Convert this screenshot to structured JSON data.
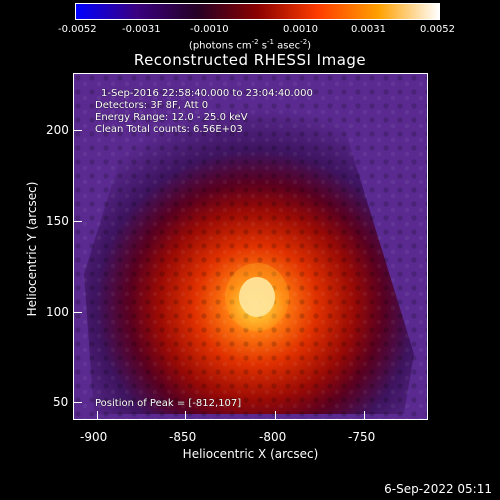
{
  "colorbar": {
    "labels": [
      "-0.0052",
      "-0.0031",
      "-0.0010",
      "0.0010",
      "0.0031",
      "0.0052"
    ],
    "units_main": "(photons cm",
    "units_exp1": "-2",
    "units_mid": " s",
    "units_exp2": "-1",
    "units_mid2": " asec",
    "units_exp3": "-2",
    "units_end": ")",
    "colors": [
      "#0000ff",
      "#3a0080",
      "#250025",
      "#8a0000",
      "#ff3c00",
      "#ffa000",
      "#ffffff"
    ]
  },
  "plot": {
    "title": "Reconstructed RHESSI Image",
    "annotations": {
      "time": "1-Sep-2016 22:58:40.000 to 23:04:40.000",
      "detectors": "Detectors: 3F 8F, Att 0",
      "energy": "Energy Range: 12.0 - 25.0 keV",
      "clean": "Clean    Total counts: 6.56E+03",
      "peak": "Position of Peak = [-812,107]"
    },
    "x_axis": {
      "label": "Heliocentric X (arcsec)",
      "ticks": [
        "-900",
        "-850",
        "-800",
        "-750"
      ]
    },
    "y_axis": {
      "label": "Heliocentric Y (arcsec)",
      "ticks": [
        "200",
        "150",
        "100",
        "50"
      ]
    },
    "colors": {
      "background": "#4a2080",
      "peak": "#ffffd0"
    }
  },
  "footer": {
    "timestamp": "6-Sep-2022 05:11"
  }
}
